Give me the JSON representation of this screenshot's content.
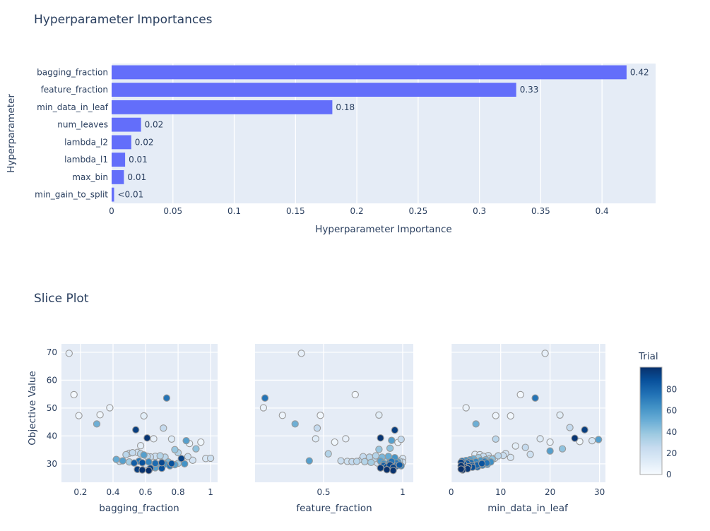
{
  "colors": {
    "bar_fill": "#636efa",
    "plot_bg": "#e5ecf6",
    "gridline": "#ffffff",
    "text": "#2a3f5f",
    "marker_edge": "#999999",
    "colorbar_border": "#aaaaaa",
    "blues_scale": [
      "#f7fbff",
      "#deebf7",
      "#c6dbef",
      "#9ecae1",
      "#6baed6",
      "#4292c6",
      "#2171b5",
      "#08519c",
      "#08306b"
    ]
  },
  "chart_data": [
    {
      "type": "bar",
      "orientation": "horizontal",
      "title": "Hyperparameter Importances",
      "xlabel": "Hyperparameter Importance",
      "ylabel": "Hyperparameter",
      "categories": [
        "bagging_fraction",
        "feature_fraction",
        "min_data_in_leaf",
        "num_leaves",
        "lambda_l2",
        "lambda_l1",
        "max_bin",
        "min_gain_to_split"
      ],
      "values": [
        0.42,
        0.33,
        0.18,
        0.024,
        0.016,
        0.011,
        0.01,
        0.002
      ],
      "value_labels": [
        "0.42",
        "0.33",
        "0.18",
        "0.02",
        "0.02",
        "0.01",
        "0.01",
        "<0.01"
      ],
      "xtick_vals": [
        0,
        0.05,
        0.1,
        0.15,
        0.2,
        0.25,
        0.3,
        0.35,
        0.4
      ],
      "xtick_labels": [
        "0",
        "0.05",
        "0.1",
        "0.15",
        "0.2",
        "0.25",
        "0.3",
        "0.35",
        "0.4"
      ],
      "xlim": [
        0,
        0.4437
      ],
      "grid": true,
      "legend": "none"
    },
    {
      "type": "scatter",
      "title": "Slice Plot",
      "ylabel": "Objective Value",
      "ytick_vals": [
        30,
        40,
        50,
        60,
        70
      ],
      "ytick_labels": [
        "30",
        "40",
        "50",
        "60",
        "70"
      ],
      "ylim": [
        23.4,
        73.0
      ],
      "grid": true,
      "colorbar": {
        "title": "Trial",
        "tick_vals": [
          0,
          20,
          40,
          60,
          80
        ],
        "tick_labels": [
          "0",
          "20",
          "40",
          "60",
          "80"
        ],
        "range": [
          0,
          101
        ],
        "cmax": 97
      },
      "subplots": [
        {
          "xlabel": "bagging_fraction",
          "xtick_vals": [
            0.2,
            0.4,
            0.6,
            0.8,
            1
          ],
          "xtick_labels": [
            "0.2",
            "0.4",
            "0.6",
            "0.8",
            "1"
          ],
          "xlim": [
            0.083,
            1.043
          ],
          "points": [
            [
              0.13,
              69.6,
              8
            ],
            [
              0.16,
              54.8,
              2
            ],
            [
              0.19,
              47.3,
              5
            ],
            [
              0.32,
              47.6,
              3
            ],
            [
              0.38,
              50.1,
              6
            ],
            [
              0.3,
              44.3,
              48
            ],
            [
              0.73,
              53.6,
              72
            ],
            [
              0.59,
              47.2,
              10
            ],
            [
              0.54,
              42.2,
              92
            ],
            [
              0.61,
              39.3,
              95
            ],
            [
              0.71,
              42.8,
              25
            ],
            [
              0.65,
              39.0,
              8
            ],
            [
              0.76,
              38.9,
              12
            ],
            [
              0.85,
              38.3,
              55
            ],
            [
              0.87,
              37.3,
              6
            ],
            [
              0.94,
              37.8,
              4
            ],
            [
              0.91,
              35.4,
              40
            ],
            [
              0.57,
              36.5,
              9
            ],
            [
              0.78,
              35.1,
              38
            ],
            [
              0.8,
              34.0,
              30
            ],
            [
              0.42,
              31.6,
              50
            ],
            [
              0.44,
              30.9,
              25
            ],
            [
              0.46,
              31.1,
              55
            ],
            [
              0.48,
              33.3,
              28
            ],
            [
              0.5,
              33.8,
              22
            ],
            [
              0.52,
              34.0,
              25
            ],
            [
              0.55,
              34.1,
              20
            ],
            [
              0.57,
              33.6,
              30
            ],
            [
              0.59,
              33.2,
              55
            ],
            [
              0.61,
              32.7,
              28
            ],
            [
              0.63,
              32.5,
              25
            ],
            [
              0.66,
              32.7,
              22
            ],
            [
              0.69,
              32.9,
              30
            ],
            [
              0.72,
              32.4,
              28
            ],
            [
              0.5,
              30.7,
              35
            ],
            [
              0.53,
              30.3,
              80
            ],
            [
              0.56,
              31.0,
              70
            ],
            [
              0.58,
              30.4,
              85
            ],
            [
              0.6,
              29.9,
              20
            ],
            [
              0.62,
              30.7,
              65
            ],
            [
              0.64,
              29.7,
              40
            ],
            [
              0.66,
              30.2,
              75
            ],
            [
              0.68,
              29.8,
              50
            ],
            [
              0.7,
              30.4,
              88
            ],
            [
              0.72,
              29.9,
              60
            ],
            [
              0.74,
              30.7,
              45
            ],
            [
              0.76,
              30.1,
              85
            ],
            [
              0.78,
              29.7,
              55
            ],
            [
              0.8,
              30.2,
              35
            ],
            [
              0.82,
              31.9,
              90
            ],
            [
              0.84,
              30.0,
              60
            ],
            [
              0.86,
              32.6,
              22
            ],
            [
              0.89,
              31.3,
              18
            ],
            [
              0.97,
              31.9,
              15
            ],
            [
              1.0,
              32.0,
              20
            ],
            [
              0.55,
              28.0,
              92
            ],
            [
              0.58,
              27.8,
              96
            ],
            [
              0.62,
              27.6,
              97
            ],
            [
              0.63,
              28.4,
              90
            ],
            [
              0.66,
              28.6,
              55
            ],
            [
              0.7,
              28.4,
              85
            ],
            [
              0.75,
              29.3,
              70
            ]
          ]
        },
        {
          "xlabel": "feature_fraction",
          "xtick_vals": [
            0.5,
            1
          ],
          "xtick_labels": [
            "0.5",
            "1"
          ],
          "xlim": [
            0.067,
            1.067
          ],
          "points": [
            [
              0.36,
              69.6,
              8
            ],
            [
              0.7,
              54.8,
              2
            ],
            [
              0.13,
              53.6,
              72
            ],
            [
              0.12,
              50.1,
              6
            ],
            [
              0.24,
              47.4,
              5
            ],
            [
              0.48,
              47.4,
              3
            ],
            [
              0.85,
              47.5,
              10
            ],
            [
              0.32,
              44.3,
              48
            ],
            [
              0.95,
              42.1,
              92
            ],
            [
              0.86,
              39.3,
              95
            ],
            [
              0.46,
              42.8,
              25
            ],
            [
              0.45,
              39.0,
              12
            ],
            [
              0.64,
              39.0,
              8
            ],
            [
              0.57,
              37.8,
              4
            ],
            [
              0.93,
              38.4,
              55
            ],
            [
              0.97,
              37.7,
              6
            ],
            [
              0.99,
              38.8,
              25
            ],
            [
              0.53,
              33.6,
              30
            ],
            [
              0.41,
              31.1,
              55
            ],
            [
              0.85,
              35.2,
              38
            ],
            [
              0.92,
              35.6,
              40
            ],
            [
              0.61,
              31.1,
              22
            ],
            [
              0.65,
              30.9,
              20
            ],
            [
              0.68,
              30.8,
              25
            ],
            [
              0.71,
              30.9,
              28
            ],
            [
              0.74,
              31.5,
              22
            ],
            [
              0.76,
              30.8,
              30
            ],
            [
              0.78,
              31.2,
              25
            ],
            [
              0.8,
              30.5,
              35
            ],
            [
              0.82,
              31.8,
              28
            ],
            [
              0.84,
              30.3,
              22
            ],
            [
              0.86,
              31.0,
              55
            ],
            [
              0.88,
              30.1,
              60
            ],
            [
              0.9,
              31.3,
              18
            ],
            [
              0.92,
              30.6,
              65
            ],
            [
              0.94,
              31.6,
              15
            ],
            [
              0.96,
              30.3,
              70
            ],
            [
              0.98,
              31.0,
              30
            ],
            [
              1.0,
              30.6,
              20
            ],
            [
              0.75,
              32.6,
              25
            ],
            [
              0.79,
              32.4,
              28
            ],
            [
              0.83,
              32.9,
              30
            ],
            [
              0.87,
              32.4,
              45
            ],
            [
              0.91,
              32.7,
              50
            ],
            [
              0.95,
              32.2,
              60
            ],
            [
              0.88,
              29.4,
              80
            ],
            [
              0.9,
              29.0,
              85
            ],
            [
              0.92,
              29.6,
              88
            ],
            [
              0.94,
              28.7,
              90
            ],
            [
              0.96,
              29.2,
              75
            ],
            [
              0.98,
              29.6,
              82
            ],
            [
              0.86,
              28.5,
              94
            ],
            [
              0.9,
              27.9,
              97
            ],
            [
              0.94,
              27.6,
              96
            ],
            [
              0.99,
              29.3,
              65
            ],
            [
              0.93,
              30.9,
              72
            ],
            [
              0.97,
              30.7,
              58
            ],
            [
              0.89,
              30.8,
              35
            ],
            [
              0.91,
              29.9,
              42
            ],
            [
              0.85,
              30.9,
              12
            ],
            [
              0.87,
              29.8,
              52
            ],
            [
              1.0,
              31.9,
              15
            ]
          ]
        },
        {
          "xlabel": "min_data_in_leaf",
          "xtick_vals": [
            0,
            10,
            20,
            30
          ],
          "xtick_labels": [
            "0",
            "10",
            "20",
            "30"
          ],
          "xlim": [
            -0.1,
            31.2
          ],
          "points": [
            [
              19,
              69.6,
              8
            ],
            [
              14,
              54.8,
              2
            ],
            [
              17,
              53.6,
              72
            ],
            [
              3,
              50.1,
              6
            ],
            [
              9,
              47.3,
              5
            ],
            [
              12,
              47.2,
              3
            ],
            [
              22,
              47.5,
              10
            ],
            [
              5,
              44.3,
              48
            ],
            [
              24,
              43.0,
              25
            ],
            [
              27,
              42.2,
              92
            ],
            [
              25,
              39.2,
              95
            ],
            [
              26,
              38.0,
              4
            ],
            [
              28.5,
              38.3,
              15
            ],
            [
              29.8,
              38.7,
              55
            ],
            [
              18,
              39.0,
              12
            ],
            [
              20,
              37.8,
              6
            ],
            [
              9,
              38.9,
              28
            ],
            [
              13,
              36.4,
              9
            ],
            [
              15,
              35.9,
              25
            ],
            [
              22.5,
              35.4,
              40
            ],
            [
              20,
              34.6,
              55
            ],
            [
              16,
              33.4,
              20
            ],
            [
              11,
              33.7,
              18
            ],
            [
              12,
              32.3,
              15
            ],
            [
              9.5,
              32.9,
              28
            ],
            [
              10.5,
              33.0,
              22
            ],
            [
              2,
              30.5,
              90
            ],
            [
              2,
              29.3,
              95
            ],
            [
              2,
              28.1,
              97
            ],
            [
              2.2,
              31.0,
              70
            ],
            [
              2.5,
              29.9,
              85
            ],
            [
              2.8,
              28.6,
              92
            ],
            [
              3,
              31.2,
              60
            ],
            [
              3.2,
              30.2,
              80
            ],
            [
              3.5,
              29.0,
              88
            ],
            [
              3.8,
              31.5,
              55
            ],
            [
              4,
              30.4,
              75
            ],
            [
              4.2,
              29.4,
              82
            ],
            [
              4.5,
              31.8,
              50
            ],
            [
              4.8,
              33.4,
              12
            ],
            [
              5,
              30.8,
              65
            ],
            [
              5.2,
              29.6,
              78
            ],
            [
              5.5,
              32.2,
              35
            ],
            [
              5.8,
              33.3,
              15
            ],
            [
              6,
              31.2,
              58
            ],
            [
              6.2,
              30.1,
              84
            ],
            [
              6.5,
              32.7,
              25
            ],
            [
              6.8,
              30.9,
              68
            ],
            [
              7,
              31.5,
              45
            ],
            [
              7.2,
              30.3,
              72
            ],
            [
              7.5,
              33.0,
              22
            ],
            [
              7.8,
              31.9,
              30
            ],
            [
              8,
              30.7,
              62
            ],
            [
              8.3,
              31.7,
              40
            ],
            [
              2.3,
              27.8,
              96
            ],
            [
              3.3,
              28.2,
              94
            ],
            [
              4.3,
              28.8,
              86
            ],
            [
              5.3,
              28.9,
              76
            ],
            [
              6.3,
              29.5,
              66
            ],
            [
              8.8,
              32.0,
              18
            ],
            [
              7.3,
              29.8,
              55
            ],
            [
              3.6,
              30.7,
              73
            ]
          ]
        }
      ]
    }
  ]
}
